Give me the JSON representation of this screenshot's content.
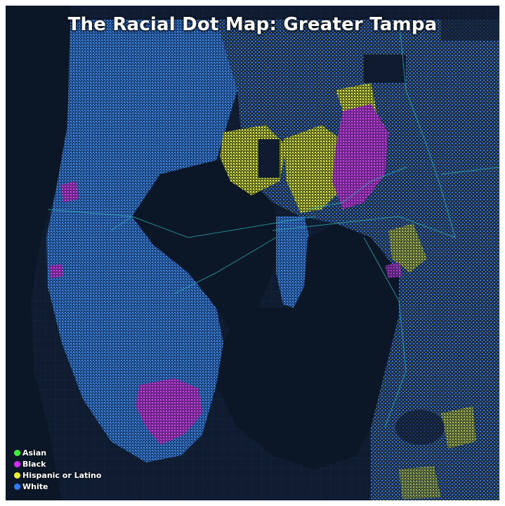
{
  "title": "The Racial Dot Map: Greater Tampa",
  "legend": [
    {
      "label": "Asian",
      "color": "#3ef03a"
    },
    {
      "label": "Black",
      "color": "#d02ef0"
    },
    {
      "label": "Hispanic or Latino",
      "color": "#f0f032"
    },
    {
      "label": "White",
      "color": "#2f7cf0"
    }
  ],
  "colors": {
    "background": "#0f1b2e",
    "water": "#0b1626",
    "road": "#2bb3b8"
  }
}
